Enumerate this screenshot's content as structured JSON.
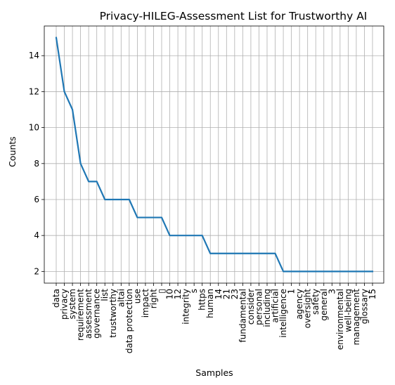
{
  "chart_data": {
    "type": "line",
    "title": "Privacy-HILEG-Assessment List for Trustworthy AI",
    "xlabel": "Samples",
    "ylabel": "Counts",
    "categories": [
      "data",
      "privacy",
      "system",
      "requirement",
      "assessment",
      "governance",
      "list",
      "trustworthy",
      "altai",
      "data protection",
      "use",
      "impact",
      "right",
      "\u0000",
      "10",
      "12",
      "integrity",
      "s",
      "https",
      "human",
      "14",
      "21",
      "23",
      "fundamental",
      "consider",
      "personal",
      "including",
      "artificial",
      "intelligence",
      "1",
      "agency",
      "oversight",
      "safety",
      "general",
      "3",
      "environmental",
      "well-being",
      "management",
      "glossary",
      "15"
    ],
    "series": [
      {
        "values": [
          15,
          12,
          11,
          8,
          7,
          7,
          6,
          6,
          6,
          6,
          5,
          5,
          5,
          5,
          4,
          4,
          4,
          4,
          4,
          3,
          3,
          3,
          3,
          3,
          3,
          3,
          3,
          3,
          2,
          2,
          2,
          2,
          2,
          2,
          2,
          2,
          2,
          2,
          2,
          2
        ],
        "color": "#1f77b4"
      }
    ],
    "yticks": [
      2,
      4,
      6,
      8,
      10,
      12,
      14
    ],
    "ylim": [
      1.35,
      15.65
    ],
    "grid": true
  }
}
